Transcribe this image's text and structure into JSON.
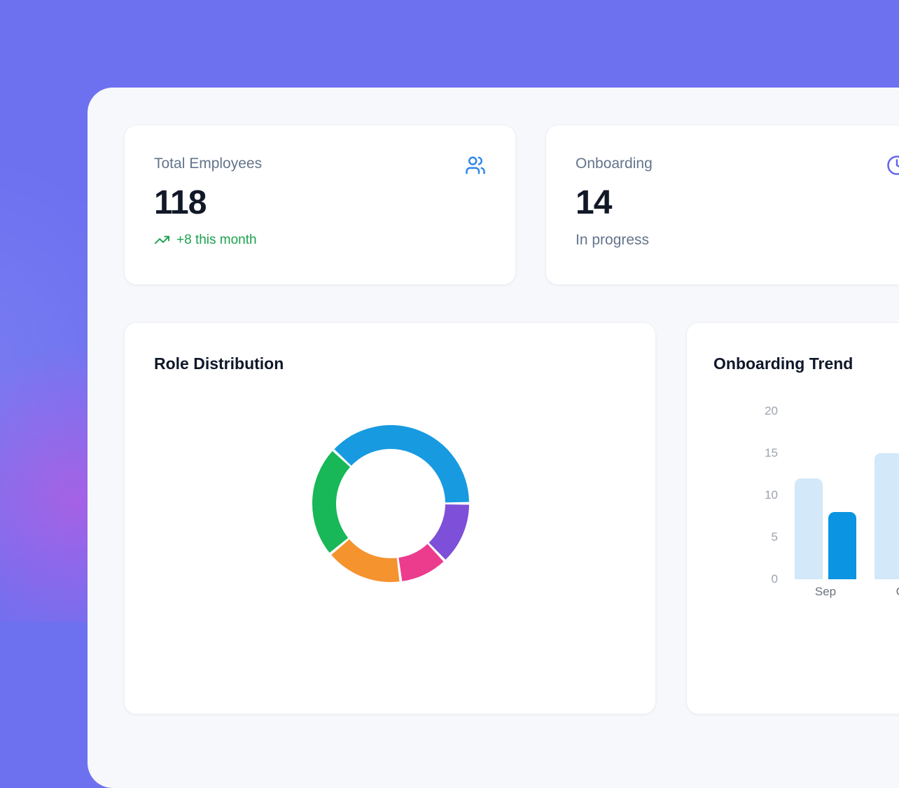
{
  "colors": {
    "background": "#6d71f0",
    "background_glow": "#e84ed8",
    "panel": "#f7f8fb",
    "card": "#ffffff",
    "heading_text": "#0f172a",
    "muted_text": "#64748b",
    "value_text": "#111827",
    "axis_text": "#9ca3af"
  },
  "stat_cards": [
    {
      "label": "Total Employees",
      "value": "118",
      "delta": "+8 this month",
      "icon": "users-icon",
      "icon_color": "#2e86e8",
      "delta_color": "#1da24e"
    },
    {
      "label": "Onboarding",
      "value": "14",
      "sub": "In progress",
      "icon": "clock-icon",
      "icon_color": "#6366f1"
    }
  ],
  "chart_cards": [
    {
      "title": "Role Distribution"
    },
    {
      "title": "Onboarding Trend"
    }
  ],
  "chart_data": [
    {
      "type": "donut",
      "title": "Role Distribution",
      "rotation_deg": -47,
      "segments": [
        {
          "name": "blue",
          "color": "#189ae1",
          "percent": 38
        },
        {
          "name": "purple",
          "color": "#7e4fd8",
          "percent": 13
        },
        {
          "name": "pink",
          "color": "#eb3c8e",
          "percent": 10
        },
        {
          "name": "orange",
          "color": "#f5932f",
          "percent": 16
        },
        {
          "name": "green",
          "color": "#18b757",
          "percent": 23
        }
      ]
    },
    {
      "type": "bar",
      "title": "Onboarding Trend",
      "categories": [
        "Sep",
        "Oct"
      ],
      "series": [
        {
          "name": "light_blue",
          "color": "#d3e8f8",
          "values": [
            12,
            15
          ]
        },
        {
          "name": "dark_blue",
          "color": "#0b94e2",
          "values": [
            8,
            null
          ]
        }
      ],
      "ylabel_ticks": [
        0,
        5,
        10,
        15,
        20
      ],
      "ylim": [
        0,
        20
      ],
      "grid": false,
      "legend": false
    }
  ]
}
